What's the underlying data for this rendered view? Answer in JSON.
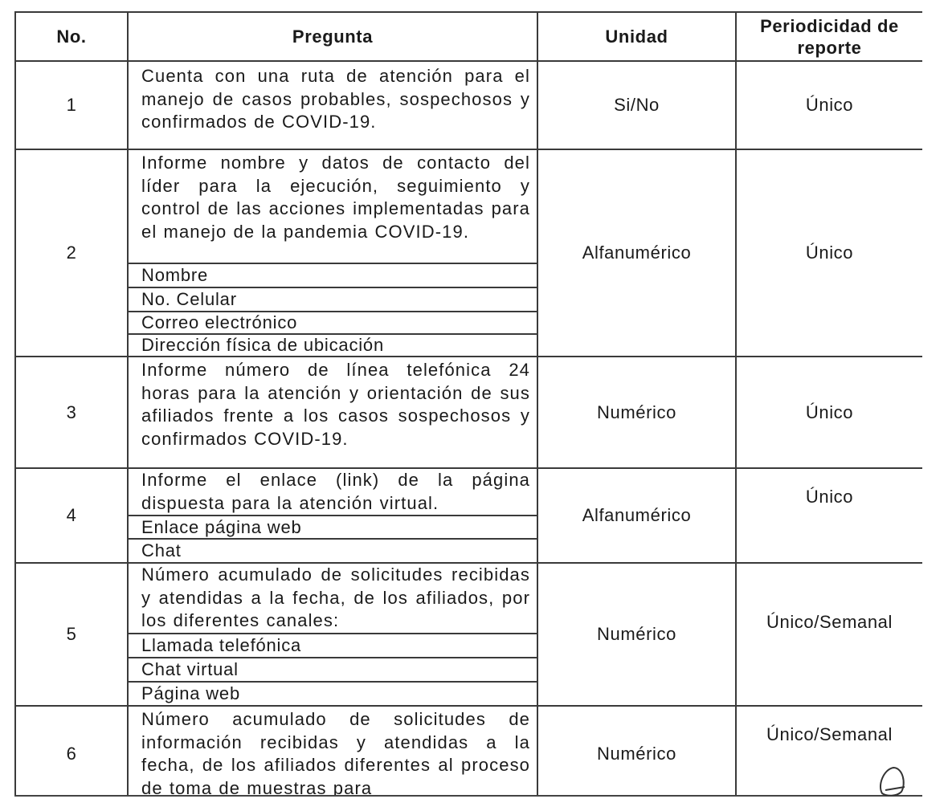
{
  "headers": {
    "no": "No.",
    "pregunta": "Pregunta",
    "unidad": "Unidad",
    "periodicidad": "Periodicidad de reporte"
  },
  "rows": [
    {
      "no": "1",
      "pregunta": "Cuenta con una ruta de atención para el manejo de casos probables, sospechosos y confirmados de COVID-19.",
      "subitems": [],
      "unidad": "Si/No",
      "periodicidad": "Único"
    },
    {
      "no": "2",
      "pregunta": "Informe nombre y datos de contacto del líder para la ejecución, seguimiento y control de las acciones implementadas para el manejo de la pandemia COVID-19.",
      "subitems": [
        "Nombre",
        "No. Celular",
        "Correo electrónico",
        "Dirección física de ubicación"
      ],
      "unidad": "Alfanumérico",
      "periodicidad": "Único"
    },
    {
      "no": "3",
      "pregunta": "Informe número de línea telefónica 24 horas para la atención y orientación de sus afiliados frente a los casos sospechosos y confirmados COVID-19.",
      "subitems": [],
      "unidad": "Numérico",
      "periodicidad": "Único"
    },
    {
      "no": "4",
      "pregunta": "Informe el enlace (link) de la página dispuesta para la atención virtual.",
      "subitems": [
        "Enlace página web",
        "Chat"
      ],
      "unidad": "Alfanumérico",
      "periodicidad": "Único"
    },
    {
      "no": "5",
      "pregunta": "Número acumulado de solicitudes recibidas y atendidas a la fecha, de los afiliados, por los diferentes canales:",
      "subitems": [
        "Llamada telefónica",
        "Chat virtual",
        "Página web"
      ],
      "unidad": "Numérico",
      "periodicidad": "Único/Semanal"
    },
    {
      "no": "6",
      "pregunta": "Número acumulado de solicitudes de información recibidas y atendidas a la fecha, de los afiliados diferentes al proceso de toma de muestras para",
      "subitems": [],
      "unidad": "Numérico",
      "periodicidad": "Único/Semanal"
    }
  ]
}
